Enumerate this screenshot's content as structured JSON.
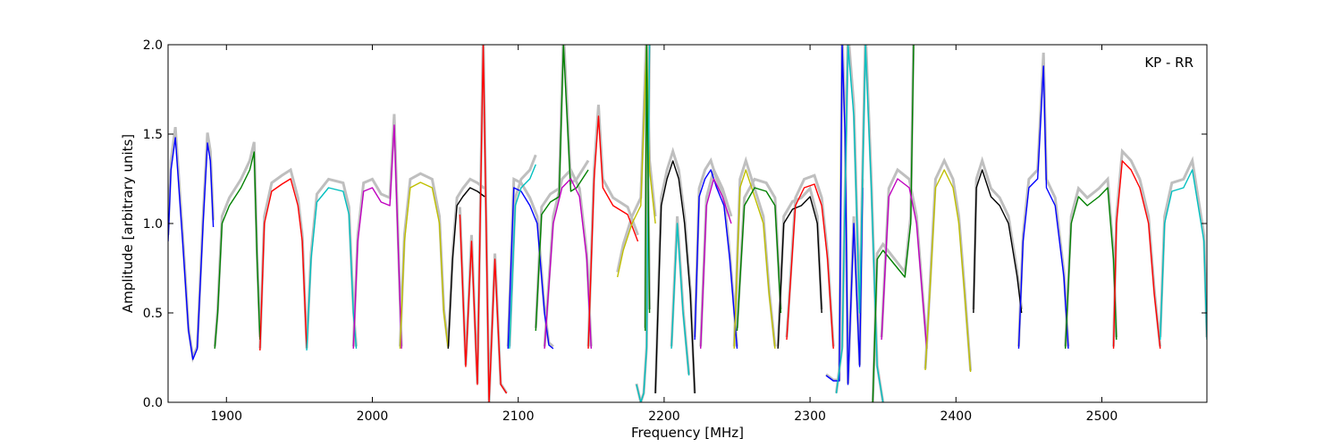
{
  "chart_data": {
    "type": "line",
    "annotation": "KP - RR",
    "xlabel": "Frequency [MHz]",
    "ylabel": "Amplitude [arbitrary units]",
    "xlim": [
      1860,
      2572
    ],
    "ylim": [
      0.0,
      2.0
    ],
    "xticks": [
      1900,
      2000,
      2100,
      2200,
      2300,
      2400,
      2500
    ],
    "yticks": [
      0.0,
      0.5,
      1.0,
      1.5,
      2.0
    ],
    "ytick_labels": [
      "0.0",
      "0.5",
      "1.0",
      "1.5",
      "2.0"
    ],
    "grid": false,
    "colors": [
      "#0000ff",
      "#008000",
      "#ff0000",
      "#00bfbf",
      "#bf00bf",
      "#bfbf00",
      "#000000"
    ],
    "background_color": "#bfbfbf",
    "series": [
      {
        "color": "#0000ff",
        "x": [
          1860,
          1862,
          1865,
          1870,
          1874,
          1877,
          1880,
          1884,
          1887,
          1889,
          1891
        ],
        "y": [
          0.9,
          1.3,
          1.48,
          0.9,
          0.4,
          0.24,
          0.3,
          1.0,
          1.45,
          1.35,
          0.98
        ]
      },
      {
        "color": "#008000",
        "x": [
          1892,
          1894,
          1897,
          1902,
          1910,
          1916,
          1919,
          1921,
          1923
        ],
        "y": [
          0.3,
          0.5,
          1.0,
          1.1,
          1.2,
          1.3,
          1.4,
          0.8,
          0.35
        ]
      },
      {
        "color": "#ff0000",
        "x": [
          1923,
          1926,
          1931,
          1938,
          1944,
          1949,
          1952,
          1955
        ],
        "y": [
          0.29,
          1.0,
          1.18,
          1.22,
          1.25,
          1.1,
          0.9,
          0.3
        ]
      },
      {
        "color": "#00bfbf",
        "x": [
          1955,
          1958,
          1962,
          1970,
          1980,
          1984,
          1987,
          1989
        ],
        "y": [
          0.29,
          0.8,
          1.12,
          1.2,
          1.18,
          1.05,
          0.5,
          0.3
        ]
      },
      {
        "color": "#bf00bf",
        "x": [
          1987,
          1990,
          1994,
          2000,
          2006,
          2012,
          2015,
          2018,
          2020
        ],
        "y": [
          0.3,
          0.9,
          1.18,
          1.2,
          1.12,
          1.1,
          1.55,
          0.8,
          0.3
        ]
      },
      {
        "color": "#bfbf00",
        "x": [
          2019,
          2022,
          2026,
          2033,
          2041,
          2046,
          2049,
          2052
        ],
        "y": [
          0.3,
          0.9,
          1.2,
          1.23,
          1.2,
          1.0,
          0.5,
          0.3
        ]
      },
      {
        "color": "#000000",
        "x": [
          2052,
          2055,
          2058,
          2062,
          2067,
          2072,
          2077
        ],
        "y": [
          0.3,
          0.8,
          1.1,
          1.15,
          1.2,
          1.18,
          1.15
        ]
      },
      {
        "color": "#ff0000",
        "x": [
          2060,
          2064,
          2068,
          2072,
          2076,
          2080,
          2084,
          2088,
          2092
        ],
        "y": [
          1.05,
          0.2,
          0.9,
          0.1,
          2.0,
          0.0,
          0.8,
          0.1,
          0.05
        ]
      },
      {
        "color": "#0000ff",
        "x": [
          2093,
          2097,
          2102,
          2108,
          2113,
          2118,
          2121,
          2124
        ],
        "y": [
          0.3,
          1.2,
          1.18,
          1.1,
          1.0,
          0.5,
          0.32,
          0.3
        ]
      },
      {
        "color": "#00bfbf",
        "x": [
          2094,
          2098,
          2102,
          2108,
          2112
        ],
        "y": [
          0.3,
          1.1,
          1.2,
          1.25,
          1.33
        ]
      },
      {
        "color": "#008000",
        "x": [
          2112,
          2116,
          2122,
          2128,
          2131,
          2136,
          2140,
          2148
        ],
        "y": [
          0.4,
          1.05,
          1.12,
          1.15,
          2.0,
          1.18,
          1.2,
          1.3
        ]
      },
      {
        "color": "#bf00bf",
        "x": [
          2118,
          2124,
          2130,
          2136,
          2142,
          2147,
          2150
        ],
        "y": [
          0.3,
          1.0,
          1.2,
          1.25,
          1.15,
          0.8,
          0.3
        ]
      },
      {
        "color": "#ff0000",
        "x": [
          2148,
          2152,
          2155,
          2158,
          2165,
          2175,
          2182
        ],
        "y": [
          0.3,
          1.25,
          1.6,
          1.2,
          1.1,
          1.05,
          0.9
        ]
      },
      {
        "color": "#bfbf00",
        "x": [
          2168,
          2172,
          2178,
          2184,
          2188,
          2190,
          2194
        ],
        "y": [
          0.7,
          0.85,
          1.0,
          1.1,
          2.0,
          1.3,
          1.0
        ]
      },
      {
        "color": "#00bfbf",
        "x": [
          2181,
          2184,
          2186,
          2188,
          2190
        ],
        "y": [
          0.1,
          0.0,
          0.05,
          0.3,
          2.0
        ]
      },
      {
        "color": "#008000",
        "x": [
          2187,
          2188,
          2190
        ],
        "y": [
          0.4,
          2.0,
          0.5
        ]
      },
      {
        "color": "#000000",
        "x": [
          2194,
          2198,
          2202,
          2206,
          2210,
          2214,
          2218,
          2221
        ],
        "y": [
          0.05,
          1.1,
          1.25,
          1.35,
          1.25,
          1.0,
          0.6,
          0.05
        ]
      },
      {
        "color": "#00bfbf",
        "x": [
          2205,
          2209,
          2213,
          2217
        ],
        "y": [
          0.3,
          1.0,
          0.5,
          0.15
        ]
      },
      {
        "color": "#0000ff",
        "x": [
          2221,
          2224,
          2228,
          2232,
          2236,
          2241,
          2245,
          2250
        ],
        "y": [
          0.35,
          1.15,
          1.25,
          1.3,
          1.2,
          1.1,
          0.8,
          0.3
        ]
      },
      {
        "color": "#bf00bf",
        "x": [
          2225,
          2229,
          2234,
          2240,
          2246
        ],
        "y": [
          0.3,
          1.1,
          1.25,
          1.15,
          1.0
        ]
      },
      {
        "color": "#bfbf00",
        "x": [
          2248,
          2252,
          2256,
          2262,
          2268,
          2272,
          2276
        ],
        "y": [
          0.3,
          1.2,
          1.3,
          1.15,
          1.0,
          0.6,
          0.3
        ]
      },
      {
        "color": "#008000",
        "x": [
          2250,
          2255,
          2262,
          2270,
          2276,
          2280
        ],
        "y": [
          0.4,
          1.1,
          1.2,
          1.18,
          1.1,
          0.5
        ]
      },
      {
        "color": "#000000",
        "x": [
          2278,
          2282,
          2288,
          2294,
          2300,
          2305,
          2308
        ],
        "y": [
          0.3,
          1.0,
          1.08,
          1.1,
          1.15,
          1.0,
          0.5
        ]
      },
      {
        "color": "#ff0000",
        "x": [
          2284,
          2290,
          2296,
          2303,
          2308,
          2312,
          2316
        ],
        "y": [
          0.35,
          1.1,
          1.2,
          1.22,
          1.1,
          0.8,
          0.3
        ]
      },
      {
        "color": "#0000ff",
        "x": [
          2311,
          2316,
          2320,
          2322,
          2324,
          2326,
          2330,
          2334,
          2336
        ],
        "y": [
          0.15,
          0.12,
          0.12,
          2.0,
          1.5,
          0.1,
          1.0,
          0.2,
          1.2
        ]
      },
      {
        "color": "#00bfbf",
        "x": [
          2318,
          2322,
          2326,
          2330,
          2334,
          2338,
          2342,
          2346,
          2350
        ],
        "y": [
          0.05,
          0.3,
          2.0,
          1.6,
          0.5,
          2.0,
          1.2,
          0.2,
          0.0
        ]
      },
      {
        "color": "#008000",
        "x": [
          2343,
          2346,
          2350,
          2355,
          2360,
          2365,
          2369,
          2371
        ],
        "y": [
          0.0,
          0.8,
          0.85,
          0.8,
          0.75,
          0.7,
          1.0,
          2.0
        ]
      },
      {
        "color": "#bf00bf",
        "x": [
          2349,
          2354,
          2360,
          2368,
          2373,
          2377,
          2380
        ],
        "y": [
          0.35,
          1.15,
          1.25,
          1.2,
          1.0,
          0.6,
          0.3
        ]
      },
      {
        "color": "#bfbf00",
        "x": [
          2379,
          2382,
          2386,
          2392,
          2398,
          2402,
          2406,
          2410
        ],
        "y": [
          0.18,
          0.6,
          1.2,
          1.3,
          1.2,
          1.0,
          0.6,
          0.17
        ]
      },
      {
        "color": "#000000",
        "x": [
          2412,
          2414,
          2418,
          2424,
          2430,
          2436,
          2442,
          2445
        ],
        "y": [
          0.5,
          1.2,
          1.3,
          1.15,
          1.1,
          1.0,
          0.7,
          0.5
        ]
      },
      {
        "color": "#0000ff",
        "x": [
          2443,
          2446,
          2450,
          2456,
          2460,
          2462,
          2468,
          2474,
          2477
        ],
        "y": [
          0.3,
          0.9,
          1.2,
          1.25,
          1.88,
          1.2,
          1.1,
          0.7,
          0.3
        ]
      },
      {
        "color": "#008000",
        "x": [
          2475,
          2479,
          2484,
          2490,
          2498,
          2504,
          2508,
          2510
        ],
        "y": [
          0.3,
          1.0,
          1.15,
          1.1,
          1.15,
          1.2,
          0.8,
          0.35
        ]
      },
      {
        "color": "#ff0000",
        "x": [
          2508,
          2510,
          2514,
          2520,
          2526,
          2532,
          2536,
          2540
        ],
        "y": [
          0.3,
          1.0,
          1.35,
          1.3,
          1.2,
          1.0,
          0.6,
          0.3
        ]
      },
      {
        "color": "#00bfbf",
        "x": [
          2540,
          2543,
          2548,
          2556,
          2562,
          2566,
          2570,
          2572
        ],
        "y": [
          0.35,
          1.0,
          1.18,
          1.2,
          1.3,
          1.1,
          0.9,
          0.35
        ]
      }
    ]
  }
}
